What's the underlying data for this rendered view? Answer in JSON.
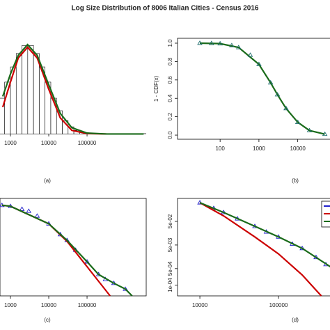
{
  "title": "Log Size Distribution of 8006 Italian Cities - Census 2016",
  "chart_data": [
    {
      "type": "histogram",
      "caption": "(a)",
      "xscale": "log",
      "xlim": [
        534,
        3500000
      ],
      "ylim": [
        -0.02,
        1.07
      ],
      "xticks": [
        1000,
        10000,
        100000
      ],
      "bins": [
        500,
        707,
        1000,
        1414,
        2000,
        2828,
        4000,
        5657,
        8000,
        11314,
        16000,
        22627,
        32000,
        45255,
        64000,
        90510,
        128000,
        181019,
        256000
      ],
      "counts": [
        0.4,
        0.58,
        0.75,
        0.9,
        0.99,
        0.99,
        0.9,
        0.75,
        0.58,
        0.4,
        0.26,
        0.15,
        0.08,
        0.04,
        0.017,
        0.007,
        0.003,
        0.001
      ],
      "color": "#ffffff",
      "series": [
        {
          "color": "#cc0000",
          "mode": "lines",
          "x": [
            630,
            1000,
            1600,
            2800,
            5000,
            10000,
            20000,
            40000,
            100000,
            320000
          ],
          "values": [
            0.3,
            0.58,
            0.85,
            0.97,
            0.85,
            0.5,
            0.18,
            0.04,
            0.004,
            0
          ]
        },
        {
          "color": "#1a6b1a",
          "mode": "lines",
          "x": [
            630,
            1000,
            1600,
            2800,
            5000,
            10000,
            20000,
            40000,
            100000,
            320000,
            3000000
          ],
          "values": [
            0.42,
            0.67,
            0.88,
            1.0,
            0.88,
            0.55,
            0.23,
            0.07,
            0.01,
            0,
            0
          ]
        }
      ]
    },
    {
      "type": "line",
      "caption": "(b)",
      "ylabel": "1 - CDF(x)",
      "xscale": "log",
      "xlim": [
        8,
        80000
      ],
      "ylim": [
        -0.045,
        1.053
      ],
      "xticks": [
        100,
        1000,
        10000
      ],
      "yticks": [
        {
          "value": 0,
          "label": "0.0"
        },
        0.2,
        0.4,
        0.6,
        0.8,
        {
          "value": 1,
          "label": "1.0"
        }
      ],
      "series": [
        {
          "color": "#1a6b1a",
          "mode": "lines",
          "x": [
            30,
            100,
            300,
            1000,
            2000,
            3000,
            5000,
            10000,
            20000,
            50000
          ],
          "values": [
            1.0,
            0.995,
            0.953,
            0.77,
            0.57,
            0.44,
            0.29,
            0.14,
            0.05,
            0.01
          ]
        },
        {
          "color": "#1f6e6e",
          "mode": "markers",
          "x": [
            30,
            60,
            100,
            200,
            300,
            600,
            1000,
            2000,
            3000,
            5000,
            10000,
            20000,
            50000
          ],
          "values": [
            1.0,
            0.998,
            0.995,
            0.975,
            0.953,
            0.87,
            0.77,
            0.57,
            0.44,
            0.29,
            0.14,
            0.05,
            0.01
          ]
        }
      ]
    },
    {
      "type": "line",
      "caption": "(c)",
      "xscale": "log",
      "xlim": [
        534,
        3500000
      ],
      "ylim": [
        0,
        1
      ],
      "xticks": [
        1000,
        10000,
        100000
      ],
      "series": [
        {
          "color": "#1f1fcc",
          "mode": "markers",
          "x": [
            600,
            1000,
            2000,
            3000,
            5000,
            10000,
            20000,
            30000,
            50000,
            100000,
            200000,
            300000,
            500000,
            1000000
          ],
          "values": [
            0.93,
            0.92,
            0.89,
            0.87,
            0.82,
            0.74,
            0.63,
            0.57,
            0.47,
            0.35,
            0.22,
            0.17,
            0.13,
            0.07
          ]
        },
        {
          "color": "#cc0000",
          "mode": "lines",
          "x": [
            600,
            1000,
            10000,
            30000,
            100000,
            200000,
            400000
          ],
          "values": [
            0.93,
            0.92,
            0.74,
            0.56,
            0.3,
            0.15,
            0
          ]
        },
        {
          "color": "#1a6b1a",
          "mode": "lines",
          "x": [
            600,
            1000,
            10000,
            30000,
            100000,
            200000,
            500000,
            1000000,
            1500000
          ],
          "values": [
            0.93,
            0.92,
            0.74,
            0.57,
            0.35,
            0.22,
            0.13,
            0.07,
            0
          ]
        }
      ]
    },
    {
      "type": "line",
      "caption": "(d)",
      "xscale": "log",
      "yscale": "log",
      "xlim": [
        5200,
        490000
      ],
      "ylim": [
        3.5e-05,
        0.47
      ],
      "xticks": [
        10000,
        100000
      ],
      "yticks": [
        {
          "value": 0.0001,
          "label": "1e-04"
        },
        {
          "value": 0.0005,
          "label": "5e-04"
        },
        {
          "value": 0.005,
          "label": "5e-03"
        },
        {
          "value": 0.05,
          "label": "5e-02"
        }
      ],
      "legend": "top-right",
      "series": [
        {
          "color": "#1f1fcc",
          "mode": "markers",
          "x": [
            10000,
            15000,
            20000,
            30000,
            50000,
            70000,
            100000,
            150000,
            200000,
            300000,
            400000
          ],
          "values": [
            0.31,
            0.18,
            0.12,
            0.065,
            0.031,
            0.018,
            0.011,
            0.0055,
            0.0036,
            0.0015,
            0.00075
          ]
        },
        {
          "color": "#cc0000",
          "mode": "lines",
          "x": [
            10000,
            20000,
            50000,
            100000,
            200000,
            350000
          ],
          "values": [
            0.31,
            0.086,
            0.011,
            0.0021,
            0.00027,
            3.5e-05
          ]
        },
        {
          "color": "#1a6b1a",
          "mode": "lines",
          "x": [
            10000,
            20000,
            50000,
            100000,
            200000,
            480000
          ],
          "values": [
            0.31,
            0.12,
            0.031,
            0.011,
            0.0036,
            0.00054
          ]
        }
      ]
    }
  ]
}
